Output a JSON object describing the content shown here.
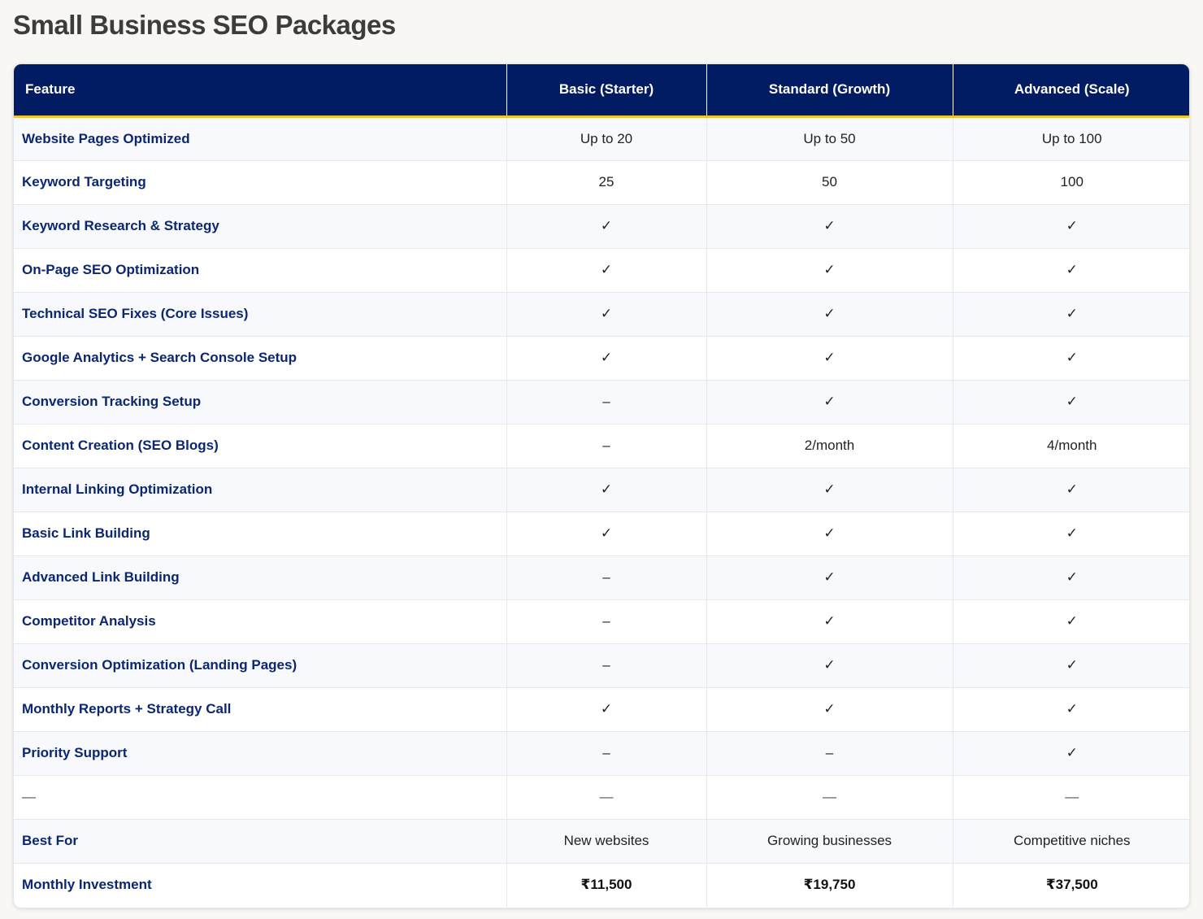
{
  "page": {
    "title": "Small Business SEO Packages"
  },
  "table": {
    "headers": [
      "Feature",
      "Basic (Starter)",
      "Standard (Growth)",
      "Advanced (Scale)"
    ],
    "rows": [
      [
        "Website Pages Optimized",
        "Up to 20",
        "Up to 50",
        "Up to 100"
      ],
      [
        "Keyword Targeting",
        "25",
        "50",
        "100"
      ],
      [
        "Keyword Research & Strategy",
        "✓",
        "✓",
        "✓"
      ],
      [
        "On-Page SEO Optimization",
        "✓",
        "✓",
        "✓"
      ],
      [
        "Technical SEO Fixes (Core Issues)",
        "✓",
        "✓",
        "✓"
      ],
      [
        "Google Analytics + Search Console Setup",
        "✓",
        "✓",
        "✓"
      ],
      [
        "Conversion Tracking Setup",
        "–",
        "✓",
        "✓"
      ],
      [
        "Content Creation (SEO Blogs)",
        "–",
        "2/month",
        "4/month"
      ],
      [
        "Internal Linking Optimization",
        "✓",
        "✓",
        "✓"
      ],
      [
        "Basic Link Building",
        "✓",
        "✓",
        "✓"
      ],
      [
        "Advanced Link Building",
        "–",
        "✓",
        "✓"
      ],
      [
        "Competitor Analysis",
        "–",
        "✓",
        "✓"
      ],
      [
        "Conversion Optimization (Landing Pages)",
        "–",
        "✓",
        "✓"
      ],
      [
        "Monthly Reports + Strategy Call",
        "✓",
        "✓",
        "✓"
      ],
      [
        "Priority Support",
        "–",
        "–",
        "✓"
      ],
      [
        "—",
        "—",
        "—",
        "—"
      ],
      [
        "Best For",
        "New websites",
        "Growing businesses",
        "Competitive niches"
      ],
      [
        "Monthly Investment",
        "₹11,500",
        "₹19,750",
        "₹37,500"
      ]
    ]
  },
  "colors": {
    "header_bg": "#021c63",
    "header_accent": "#f2c230",
    "feature_text": "#0c2670"
  }
}
